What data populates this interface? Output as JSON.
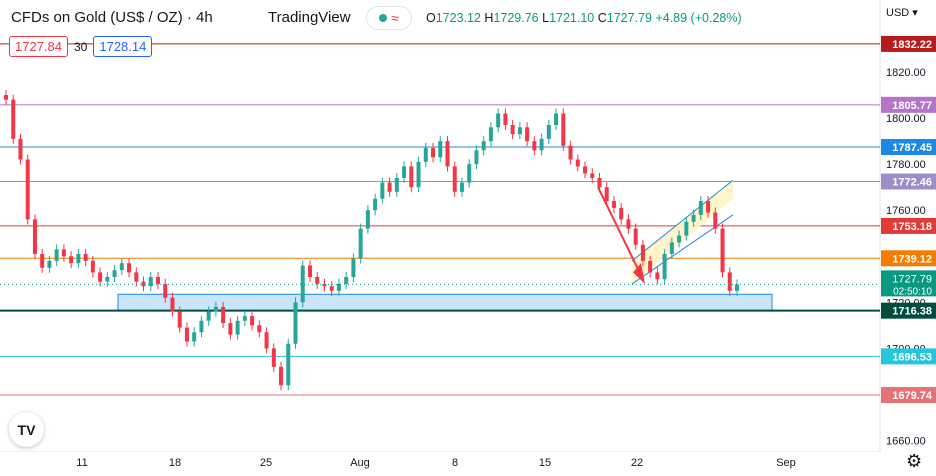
{
  "header": {
    "symbol": "CFDs on Gold (US$ / OZ) · 4h",
    "brand": "TradingView",
    "ohlc": {
      "o_label": "O",
      "o": "1723.12",
      "h_label": "H",
      "h": "1729.76",
      "l_label": "L",
      "l": "1721.10",
      "c_label": "C",
      "c": "1727.79",
      "chg": "+4.89 (+0.28%)"
    },
    "bid": "1727.84",
    "spread": "30",
    "ask": "1728.14",
    "currency": "USD"
  },
  "colors": {
    "up": "#26a69a",
    "down": "#f23645",
    "zone_fill": "#bbdefb",
    "zone_border": "#1e88e5",
    "channel_fill": "#fff3c4",
    "arrow": "#f23645"
  },
  "icons": {
    "logo": "tradingview-logo-icon",
    "settings": "gear-icon",
    "pill": "indicator-toggle-icon"
  },
  "chart_data": {
    "type": "candlestick",
    "timeframe": "4h",
    "x_ticks": [
      "11",
      "18",
      "25",
      "Aug",
      "8",
      "15",
      "22",
      "Sep"
    ],
    "ylim": [
      1655,
      1840
    ],
    "y_ticks": [
      1660,
      1680,
      1700,
      1720,
      1740,
      1760,
      1780,
      1800,
      1820
    ],
    "y_tick_labels": [
      "1660.00",
      "1680.00",
      "1700.00",
      "1720.00",
      "1740.00",
      "1760.00",
      "1780.00",
      "1800.00",
      "1820.00"
    ],
    "last_price": "1727.79",
    "countdown": "02:50:10",
    "levels": [
      {
        "value": 1832.22,
        "label": "1832.22",
        "color": "#b71c1c"
      },
      {
        "value": 1805.77,
        "label": "1805.77",
        "color": "#b573c9"
      },
      {
        "value": 1787.45,
        "label": "1787.45",
        "color": "#1e88e5"
      },
      {
        "value": 1772.46,
        "label": "1772.46",
        "color": "#9c8fc9"
      },
      {
        "value": 1753.18,
        "label": "1753.18",
        "color": "#e53935"
      },
      {
        "value": 1739.12,
        "label": "1739.12",
        "color": "#f57c00"
      },
      {
        "value": 1716.38,
        "label": "1716.38",
        "color": "#004d40"
      },
      {
        "value": 1696.53,
        "label": "1696.53",
        "color": "#26c6da"
      },
      {
        "value": 1679.74,
        "label": "1679.74",
        "color": "#e57373"
      }
    ],
    "support_zone": {
      "low": 1716.4,
      "high": 1723.5
    },
    "closes": [
      1808,
      1791,
      1782,
      1756,
      1741,
      1735,
      1738,
      1743,
      1740,
      1737,
      1741,
      1738,
      1733,
      1729,
      1731,
      1734,
      1737,
      1733,
      1729,
      1727,
      1731,
      1728,
      1722,
      1716,
      1709,
      1703,
      1707,
      1712,
      1716,
      1718,
      1711,
      1706,
      1712,
      1714,
      1710,
      1707,
      1700,
      1692,
      1684,
      1702,
      1720,
      1736,
      1731,
      1728,
      1727,
      1725,
      1728,
      1731,
      1739,
      1752,
      1760,
      1765,
      1772,
      1768,
      1774,
      1779,
      1770,
      1781,
      1787,
      1783,
      1790,
      1779,
      1768,
      1772,
      1780,
      1786,
      1790,
      1796,
      1802,
      1797,
      1793,
      1796,
      1790,
      1786,
      1791,
      1797,
      1802,
      1788,
      1782,
      1779,
      1776,
      1774,
      1770,
      1764,
      1761,
      1756,
      1752,
      1745,
      1738,
      1733,
      1730,
      1741,
      1746,
      1749,
      1755,
      1758,
      1764,
      1759,
      1752,
      1733,
      1725,
      1727.79
    ]
  }
}
